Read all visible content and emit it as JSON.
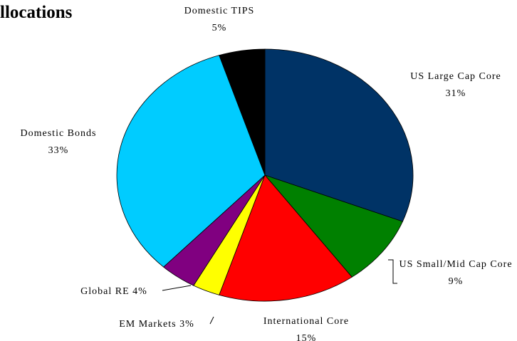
{
  "chart_data": {
    "type": "pie",
    "title": "llocations",
    "categories": [
      "US Large Cap Core",
      "US Small/Mid Cap Core",
      "International Core",
      "EM Markets",
      "Global RE",
      "Domestic Bonds",
      "Domestic TIPS"
    ],
    "values": [
      31,
      9,
      15,
      3,
      4,
      33,
      5
    ],
    "value_labels": [
      "31%",
      "9%",
      "15%",
      "3%",
      "4%",
      "33%",
      "5%"
    ],
    "colors": [
      "#003366",
      "#008000",
      "#ff0000",
      "#ffff00",
      "#800080",
      "#00ccff",
      "#000000"
    ]
  }
}
